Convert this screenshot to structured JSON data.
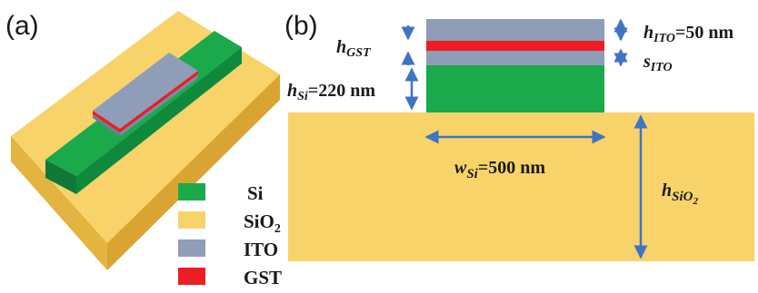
{
  "panels": {
    "a_label": "(a)",
    "b_label": "(b)"
  },
  "legend": [
    {
      "label": "Si",
      "color": "#1aaa4c"
    },
    {
      "label": "SiO",
      "sub": "2",
      "color": "#f7d36a"
    },
    {
      "label": "ITO",
      "color": "#8f9db8"
    },
    {
      "label": "GST",
      "color": "#ee1c24"
    }
  ],
  "dimensions": {
    "h_ito": {
      "sym": "h",
      "sub": "ITO",
      "value": "=50 nm"
    },
    "s_ito": {
      "sym": "s",
      "sub": "ITO"
    },
    "h_gst": {
      "sym": "h",
      "sub": "GST"
    },
    "h_si": {
      "sym": "h",
      "sub": "Si",
      "value": "=220 nm"
    },
    "w_si": {
      "sym": "w",
      "sub": "Si",
      "value": "=500 nm"
    },
    "h_sio2": {
      "sym": "h",
      "sub": "SiO",
      "subsub": "2"
    }
  },
  "colors": {
    "si": "#1aaa4c",
    "sio2": "#f7d36a",
    "ito": "#8f9db8",
    "gst": "#ee1c24",
    "arrow": "#3f74c4"
  }
}
